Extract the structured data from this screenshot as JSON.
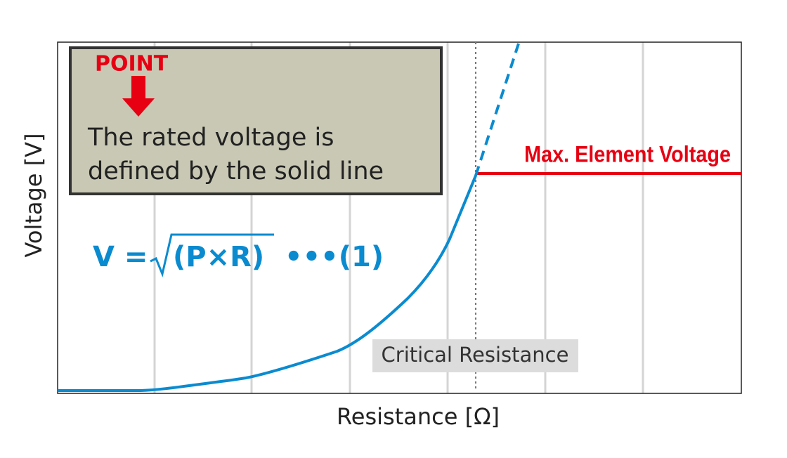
{
  "callout": {
    "tag": "POINT",
    "lines": [
      "The rated voltage is",
      "defined by the solid line"
    ]
  },
  "max_label": "Max. Element Voltage",
  "formula": {
    "lhs": "V =",
    "radicand": "(P×R)",
    "suffix": "•••(1)"
  },
  "critical_label": "Critical Resistance",
  "y_axis_label": "Voltage [V]",
  "x_axis_label": "Resistance [Ω]"
}
